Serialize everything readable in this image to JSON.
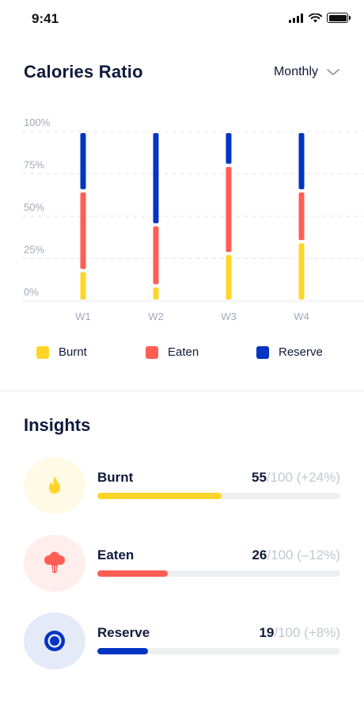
{
  "status_bar": {
    "time": "9:41"
  },
  "header": {
    "title": "Calories Ratio",
    "period": "Monthly"
  },
  "colors": {
    "burnt": "#ffd529",
    "eaten": "#ff5e55",
    "reserve": "#0334c3"
  },
  "chart_data": {
    "type": "bar",
    "stacked": true,
    "y_ticks": [
      "100%",
      "75%",
      "50%",
      "25%",
      "0%"
    ],
    "ylim": [
      0,
      100
    ],
    "categories": [
      "W1",
      "W2",
      "W3",
      "W4"
    ],
    "series": [
      {
        "name": "Burnt",
        "values": [
          18,
          9,
          28,
          35
        ]
      },
      {
        "name": "Eaten",
        "values": [
          47,
          36,
          52,
          30
        ]
      },
      {
        "name": "Reserve",
        "values": [
          35,
          55,
          20,
          35
        ]
      }
    ],
    "legend": [
      "Burnt",
      "Eaten",
      "Reserve"
    ],
    "grid": true
  },
  "insights": {
    "title": "Insights",
    "items": [
      {
        "name": "Burnt",
        "score": "55",
        "suffix": "/100 (+24%)",
        "fraction": 0.51,
        "icon": "flame-icon"
      },
      {
        "name": "Eaten",
        "score": "26",
        "suffix": "/100 (–12%)",
        "fraction": 0.29,
        "icon": "broccoli-icon"
      },
      {
        "name": "Reserve",
        "score": "19",
        "suffix": "/100 (+8%)",
        "fraction": 0.21,
        "icon": "target-ring-icon"
      }
    ]
  }
}
